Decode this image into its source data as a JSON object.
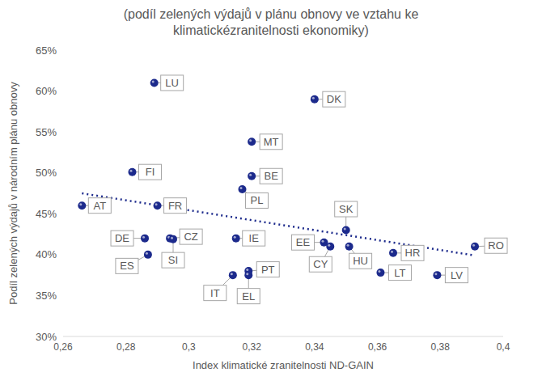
{
  "chart_data": {
    "type": "scatter",
    "title": "(podíl zelených výdajů v plánu obnovy ve vztahu ke klimatickézranitelnosti ekonomiky)",
    "x_label": "Index klimatické zranitelnosti ND-GAIN",
    "y_label": "Podíl zelených výdajů v národním plánu obnovy",
    "color": "#1c2a8c",
    "marker": "circle",
    "points": [
      {
        "label": "LU",
        "x": 0.289,
        "y": 61
      },
      {
        "label": "DK",
        "x": 0.34,
        "y": 59
      },
      {
        "label": "MT",
        "x": 0.32,
        "y": 53.8
      },
      {
        "label": "BE",
        "x": 0.32,
        "y": 49.6
      },
      {
        "label": "FI",
        "x": 0.282,
        "y": 50.1
      },
      {
        "label": "PL",
        "x": 0.317,
        "y": 48
      },
      {
        "label": "AT",
        "x": 0.266,
        "y": 46
      },
      {
        "label": "FR",
        "x": 0.29,
        "y": 46
      },
      {
        "label": "SK",
        "x": 0.35,
        "y": 43
      },
      {
        "label": "DE",
        "x": 0.286,
        "y": 42
      },
      {
        "label": "CZ",
        "x": 0.294,
        "y": 42
      },
      {
        "label": "IE",
        "x": 0.315,
        "y": 42
      },
      {
        "label": "EE",
        "x": 0.343,
        "y": 41.5
      },
      {
        "label": "CY",
        "x": 0.345,
        "y": 41
      },
      {
        "label": "HU",
        "x": 0.351,
        "y": 41
      },
      {
        "label": "RO",
        "x": 0.391,
        "y": 41
      },
      {
        "label": "HR",
        "x": 0.365,
        "y": 40.2
      },
      {
        "label": "ES",
        "x": 0.287,
        "y": 40
      },
      {
        "label": "SI",
        "x": 0.295,
        "y": 41.9
      },
      {
        "label": "IT",
        "x": 0.314,
        "y": 37.5
      },
      {
        "label": "PT",
        "x": 0.319,
        "y": 38
      },
      {
        "label": "EL",
        "x": 0.319,
        "y": 37.5
      },
      {
        "label": "LT",
        "x": 0.361,
        "y": 37.8
      },
      {
        "label": "LV",
        "x": 0.379,
        "y": 37.5
      }
    ],
    "trendline": {
      "x": [
        0.266,
        0.391
      ],
      "y": [
        47.5,
        39.9
      ],
      "color": "#1c2a8c",
      "line_style": "dotted"
    },
    "xlim": [
      0.26,
      0.4
    ],
    "xticks": [
      {
        "value": 0.26,
        "label": "0,26"
      },
      {
        "value": 0.28,
        "label": "0,28"
      },
      {
        "value": 0.3,
        "label": "0,3"
      },
      {
        "value": 0.32,
        "label": "0,32"
      },
      {
        "value": 0.34,
        "label": "0,34"
      },
      {
        "value": 0.36,
        "label": "0,36"
      },
      {
        "value": 0.38,
        "label": "0,38"
      },
      {
        "value": 0.4,
        "label": "0,4"
      }
    ],
    "ylim": [
      30,
      65
    ],
    "yticks": [
      {
        "value": 30,
        "label": "30%"
      },
      {
        "value": 35,
        "label": "35%"
      },
      {
        "value": 40,
        "label": "40%"
      },
      {
        "value": 45,
        "label": "45%"
      },
      {
        "value": 50,
        "label": "50%"
      },
      {
        "value": 55,
        "label": "55%"
      },
      {
        "value": 60,
        "label": "60%"
      },
      {
        "value": 65,
        "label": "65%"
      }
    ],
    "grid": false
  }
}
